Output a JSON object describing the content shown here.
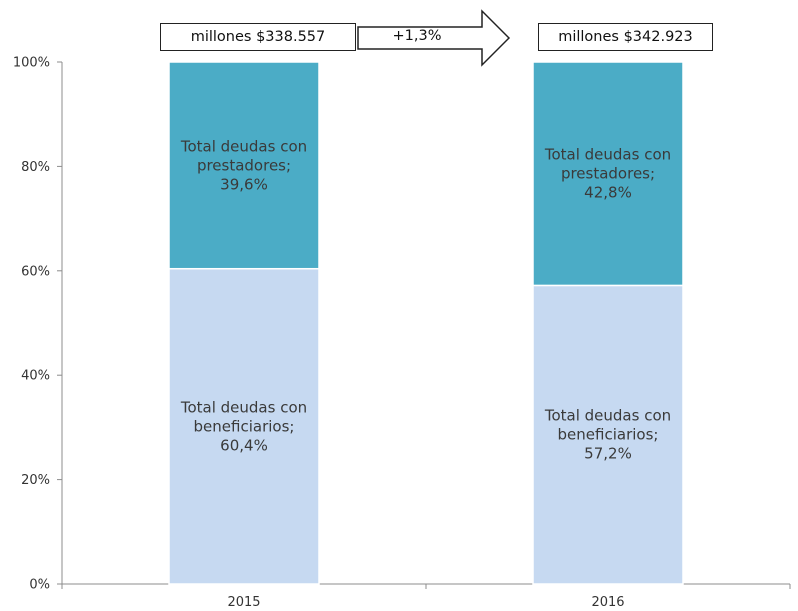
{
  "chart_data": {
    "type": "bar",
    "stacked": true,
    "percent_axis": true,
    "categories": [
      "2015",
      "2016"
    ],
    "series": [
      {
        "key": "beneficiarios",
        "values": [
          60.4,
          57.2
        ],
        "labels": [
          [
            "Total deudas con",
            "beneficiarios;",
            "60,4%"
          ],
          [
            "Total deudas con",
            "beneficiarios;",
            "57,2%"
          ]
        ],
        "color": "#c6d9f1"
      },
      {
        "key": "prestadores",
        "values": [
          39.6,
          42.8
        ],
        "labels": [
          [
            "Total deudas con",
            "prestadores;",
            "39,6%"
          ],
          [
            "Total deudas con",
            "prestadores;",
            "42,8%"
          ]
        ],
        "color": "#4bacc6"
      }
    ],
    "yticks": [
      "0%",
      "20%",
      "40%",
      "60%",
      "80%",
      "100%"
    ],
    "ylim": [
      0,
      100
    ],
    "grid": false,
    "totals": [
      "millones $338.557",
      "millones $342.923"
    ],
    "growth": "+1,3%"
  }
}
